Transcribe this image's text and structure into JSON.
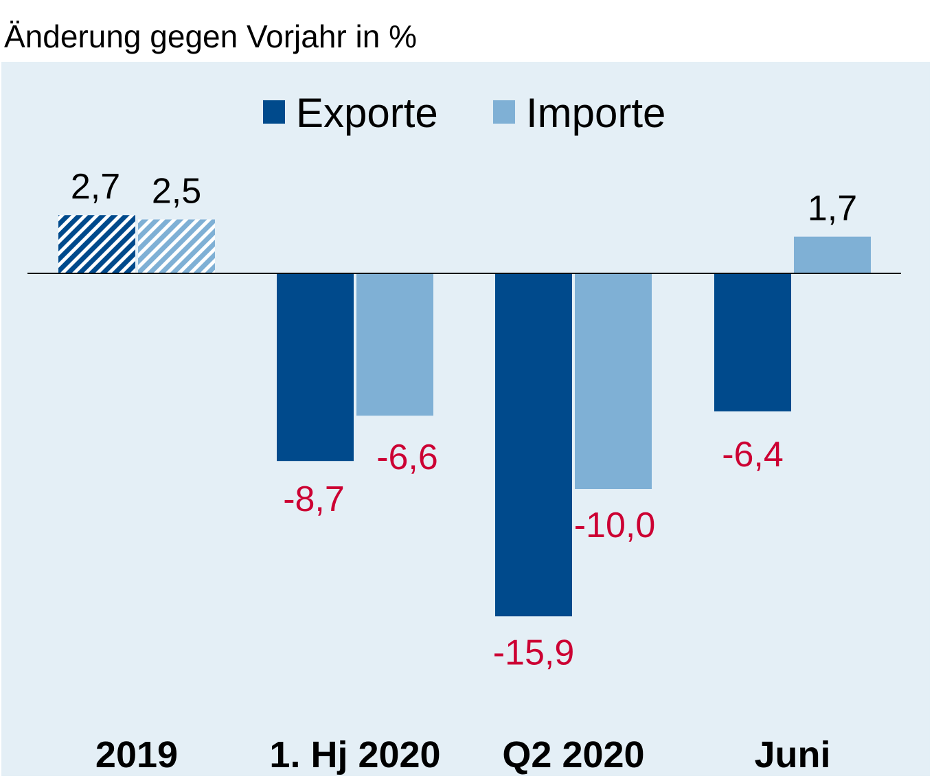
{
  "chart_data": {
    "type": "bar",
    "ylabel": "Änderung gegen Vorjahr in %",
    "categories": [
      "2019",
      "1. Hj 2020",
      "Q2 2020",
      "Juni"
    ],
    "series": [
      {
        "name": "Exporte",
        "values": [
          2.7,
          -8.7,
          -15.9,
          -6.4
        ],
        "labels": [
          "2,7",
          "-8,7",
          "-15,9",
          "-6,4"
        ],
        "color": "#004a8c"
      },
      {
        "name": "Importe",
        "values": [
          2.5,
          -6.6,
          -10.0,
          1.7
        ],
        "labels": [
          "2,5",
          "-6,6",
          "-10,0",
          "1,7"
        ],
        "color": "#7fb0d5"
      }
    ],
    "hatched_categories": [
      "2019"
    ],
    "negative_label_color": "#cc0033",
    "positive_label_color": "#000000",
    "background": "#e4eff6",
    "legend_position": "top-center",
    "grid": false
  }
}
